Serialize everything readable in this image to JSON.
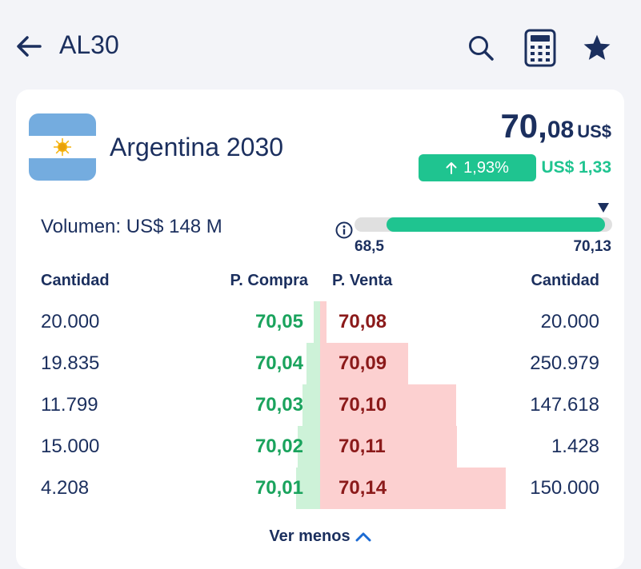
{
  "header": {
    "ticker": "AL30",
    "icons": [
      "back-arrow-icon",
      "search-icon",
      "calculator-icon",
      "star-icon"
    ]
  },
  "bond": {
    "name": "Argentina 2030",
    "price_int": "70,",
    "price_dec": "08",
    "price_currency": "US$",
    "change_pct": "1,93%",
    "change_abs": "US$ 1,33",
    "volume": "Volumen: US$ 148 M",
    "range_low": "68,5",
    "range_high": "70,13"
  },
  "orderbook": {
    "headers": {
      "bid_qty": "Cantidad",
      "bid_price": "P. Compra",
      "ask_price": "P. Venta",
      "ask_qty": "Cantidad"
    },
    "rows": [
      {
        "bid_qty": "20.000",
        "bid_price": "70,05",
        "ask_price": "70,08",
        "ask_qty": "20.000"
      },
      {
        "bid_qty": "19.835",
        "bid_price": "70,04",
        "ask_price": "70,09",
        "ask_qty": "250.979"
      },
      {
        "bid_qty": "11.799",
        "bid_price": "70,03",
        "ask_price": "70,10",
        "ask_qty": "147.618"
      },
      {
        "bid_qty": "15.000",
        "bid_price": "70,02",
        "ask_price": "70,11",
        "ask_qty": "1.428"
      },
      {
        "bid_qty": "4.208",
        "bid_price": "70,01",
        "ask_price": "70,14",
        "ask_qty": "150.000"
      }
    ],
    "bid_cumulative": [
      20000,
      39835,
      51634,
      66634,
      70842
    ],
    "ask_cumulative": [
      20000,
      270979,
      418597,
      420025,
      570025
    ]
  },
  "footer": {
    "toggle_label": "Ver menos"
  },
  "colors": {
    "navy": "#1b2f5e",
    "green": "#1fc490",
    "bid_green": "#1aa35d",
    "ask_red": "#8b1a1a",
    "bid_bar": "#cdf2d8",
    "ask_bar": "#fcd0d0"
  }
}
